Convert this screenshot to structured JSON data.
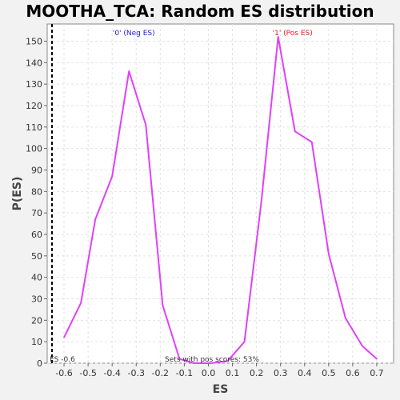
{
  "chart_data": {
    "type": "line",
    "title": "MOOTHA_TCA: Random ES distribution",
    "xlabel": "ES",
    "ylabel": "P(ES)",
    "xlim": [
      -0.67,
      0.77
    ],
    "ylim": [
      0,
      158
    ],
    "x_ticks": [
      -0.6,
      -0.5,
      -0.4,
      -0.3,
      -0.2,
      -0.1,
      0.0,
      0.1,
      0.2,
      0.3,
      0.4,
      0.5,
      0.6,
      0.7
    ],
    "x_tick_labels": [
      "-0.6",
      "-0.5",
      "-0.4",
      "-0.3",
      "-0.2",
      "-0.1",
      "0.0",
      "0.1",
      "0.2",
      "0.3",
      "0.4",
      "0.5",
      "0.6",
      "0.7"
    ],
    "y_ticks": [
      0,
      10,
      20,
      30,
      40,
      50,
      60,
      70,
      80,
      90,
      100,
      110,
      120,
      130,
      140,
      150
    ],
    "y_tick_labels": [
      "0",
      "10",
      "20",
      "30",
      "40",
      "50",
      "60",
      "70",
      "80",
      "90",
      "100",
      "110",
      "120",
      "130",
      "140",
      "150"
    ],
    "grid": true,
    "series": [
      {
        "color": "#e040fb",
        "x": [
          -0.6,
          -0.53,
          -0.47,
          -0.4,
          -0.33,
          -0.26,
          -0.19,
          -0.12,
          -0.06,
          0.01,
          0.08,
          0.15,
          0.22,
          0.29,
          0.36,
          0.43,
          0.5,
          0.57,
          0.64,
          0.7
        ],
        "y": [
          12,
          28,
          67,
          87,
          136,
          111,
          27,
          2,
          0,
          0,
          1,
          10,
          75,
          152,
          108,
          103,
          51,
          21,
          8,
          2
        ]
      }
    ],
    "annotations": {
      "neg_label": "'0' (Neg ES)",
      "pos_label": "'1' (Pos ES)",
      "es_marker_label": "ES -0.6",
      "es_marker_value": -0.65,
      "footer": "Sets with pos scores: 53%"
    },
    "colors": {
      "line": "#e040fb",
      "neg_label": "#2222cc",
      "pos_label": "#dd2222",
      "marker": "#000000"
    }
  }
}
